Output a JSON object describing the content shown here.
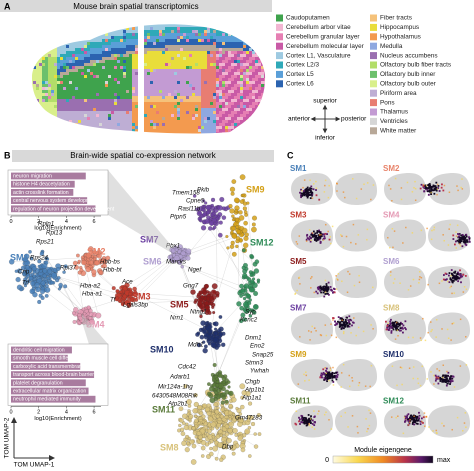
{
  "panel_a": {
    "letter": "A",
    "title": "Mouse brain spatial transcriptomics",
    "legend": [
      {
        "label": "Caudoputamen",
        "color": "#3fa34d"
      },
      {
        "label": "Cerebellum arbor vitae",
        "color": "#f2b6d2"
      },
      {
        "label": "Cerebellum granular layer",
        "color": "#e67fb3"
      },
      {
        "label": "Cerebellum molecular layer",
        "color": "#c95aa6"
      },
      {
        "label": "Cortex L1, Vasculature",
        "color": "#9ecae1"
      },
      {
        "label": "Cortex L2/3",
        "color": "#2fa9b8"
      },
      {
        "label": "Cortex L5",
        "color": "#5a9fd8"
      },
      {
        "label": "Cortex L6",
        "color": "#2c63b0"
      },
      {
        "label": "Fiber tracts",
        "color": "#f5c27a"
      },
      {
        "label": "Hippocampus",
        "color": "#e9dd3a"
      },
      {
        "label": "Hypothalamus",
        "color": "#f39a4f"
      },
      {
        "label": "Medulla",
        "color": "#8fa8e0"
      },
      {
        "label": "Nucleus accumbens",
        "color": "#9a6fb0"
      },
      {
        "label": "Olfactory bulb fiber tracts",
        "color": "#b3de69"
      },
      {
        "label": "Olfactory bulb inner",
        "color": "#6cc06c"
      },
      {
        "label": "Olfactory bulb outer",
        "color": "#d9ef8b"
      },
      {
        "label": "Piriform area",
        "color": "#beaed4"
      },
      {
        "label": "Pons",
        "color": "#e87d72"
      },
      {
        "label": "Thalamus",
        "color": "#c39bd3"
      },
      {
        "label": "Ventricles",
        "color": "#d6d6d6"
      },
      {
        "label": "White matter",
        "color": "#b8a898"
      }
    ],
    "compass": {
      "superior": "superior",
      "anterior": "anterior",
      "posterior": "posterior",
      "inferior": "inferior"
    }
  },
  "panel_b": {
    "letter": "B",
    "title": "Brain-wide spatial co-expression network",
    "modules": [
      {
        "name": "SM1",
        "color": "#4a80b8"
      },
      {
        "name": "SM2",
        "color": "#e8836a"
      },
      {
        "name": "SM3",
        "color": "#c0392b"
      },
      {
        "name": "SM4",
        "color": "#e49ab4"
      },
      {
        "name": "SM5",
        "color": "#8b1a1a"
      },
      {
        "name": "SM6",
        "color": "#b09fd0"
      },
      {
        "name": "SM7",
        "color": "#6b3fa0"
      },
      {
        "name": "SM8",
        "color": "#d8c27a"
      },
      {
        "name": "SM9",
        "color": "#d4a017"
      },
      {
        "name": "SM10",
        "color": "#1f2f6b"
      },
      {
        "name": "SM11",
        "color": "#5a7a3a"
      },
      {
        "name": "SM12",
        "color": "#2e8b57"
      }
    ],
    "genes": [
      "Rplp1",
      "Rps21",
      "Rpl13",
      "Rps24",
      "Rpl37",
      "Cnp",
      "Trf",
      "Hbb-bs",
      "Hbb-bt",
      "Hba-a2",
      "Hba-a1",
      "Ace",
      "Lgals3bp",
      "Tf",
      "Tmem158",
      "Pkib",
      "Cpne5",
      "Rasl11b",
      "Ptpn5",
      "Pbx1",
      "Marcks",
      "Ngef",
      "Gng7",
      "Ntng1",
      "Nrn1",
      "Mdh1",
      "Cdc42",
      "Adarb1",
      "Mir124a-1hg",
      "6430548M08Rik",
      "Atp2b1",
      "Syp",
      "Kcnc2",
      "Dnm1",
      "Eno2",
      "Snap25",
      "Stmn3",
      "Ywhah",
      "Chgb",
      "Atp1b1",
      "Atp1a1",
      "Gm47283",
      "Dbp"
    ],
    "go_top": {
      "terms": [
        "neuron migration",
        "histone H4 deacetylation",
        "actin crosslink formation",
        "central nervous system development",
        "regulation of neuron projection development"
      ],
      "values": [
        5.4,
        4.6,
        4.5,
        5.5,
        6.1
      ],
      "xlim": [
        0,
        6.5
      ],
      "xticks": [
        0,
        2,
        4,
        6
      ],
      "xlabel": "log10(Enrichment)"
    },
    "go_bottom": {
      "terms": [
        "dendritic cell migration",
        "smooth muscle cell differentiation",
        "carboxylic acid transmembrane transport",
        "transport across blood-brain barrier",
        "platelet degranulation",
        "extracellular matrix organization",
        "neutrophil mediated immunity"
      ],
      "values": [
        4.4,
        4.1,
        5.0,
        6.0,
        5.4,
        5.6,
        6.1
      ],
      "xlim": [
        0,
        6.5
      ],
      "xticks": [
        0,
        2,
        4,
        6
      ],
      "xlabel": "log10(Enrichment)"
    },
    "axis_x": "TOM UMAP-1",
    "axis_y": "TOM UMAP-2"
  },
  "panel_c": {
    "letter": "C",
    "colorbar": {
      "label": "Module eigengene",
      "min": 0,
      "max": "max"
    }
  }
}
